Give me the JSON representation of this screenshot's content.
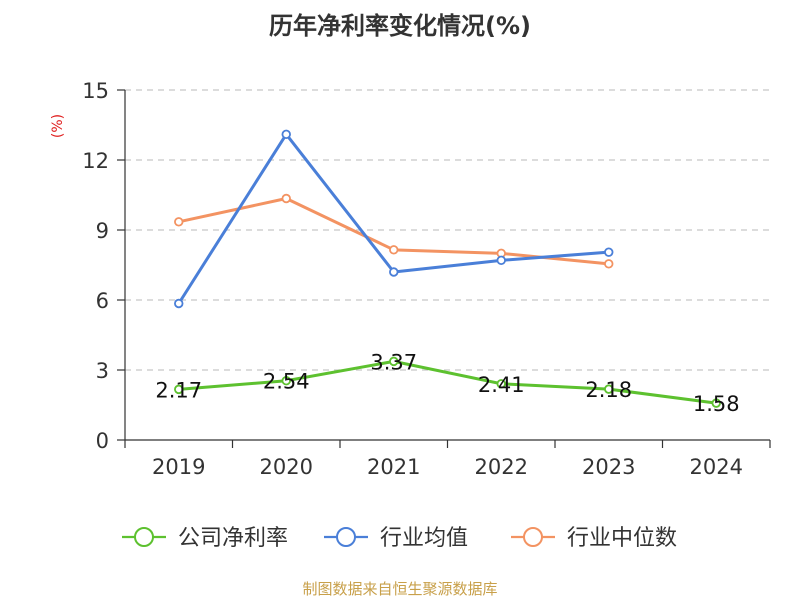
{
  "chart_data": {
    "type": "line",
    "title": "历年净利率变化情况(%)",
    "ylabel": "(%)",
    "xlabel": "",
    "categories": [
      "2019",
      "2020",
      "2021",
      "2022",
      "2023",
      "2024"
    ],
    "ylim": [
      0,
      15
    ],
    "yticks": [
      0,
      3,
      6,
      9,
      12,
      15
    ],
    "grid": true,
    "legend_position": "bottom",
    "series": [
      {
        "name": "公司净利率",
        "color": "#5dc12f",
        "values": [
          2.17,
          2.54,
          3.37,
          2.41,
          2.18,
          1.58
        ],
        "labels": [
          "2.17",
          "2.54",
          "3.37",
          "2.41",
          "2.18",
          "1.58"
        ]
      },
      {
        "name": "行业均值",
        "color": "#4a7fd8",
        "values": [
          5.85,
          13.1,
          7.2,
          7.7,
          8.05,
          null
        ]
      },
      {
        "name": "行业中位数",
        "color": "#f39362",
        "values": [
          9.35,
          10.35,
          8.15,
          8.0,
          7.55,
          null
        ]
      }
    ]
  },
  "footer": "制图数据来自恒生聚源数据库"
}
